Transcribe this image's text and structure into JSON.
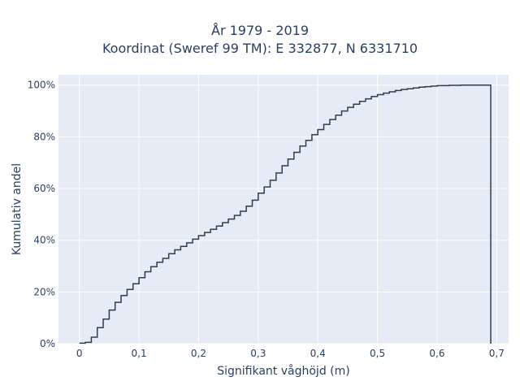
{
  "chart_data": {
    "type": "line",
    "title_lines": [
      "År 1979 - 2019",
      "Koordinat (Sweref 99 TM): E 332877, N 6331710"
    ],
    "xlabel": "Signifikant våghöjd (m)",
    "ylabel": "Kumulativ andel",
    "xlim": [
      -0.035,
      0.72
    ],
    "ylim": [
      0,
      1.04
    ],
    "x_ticks": [
      0,
      0.1,
      0.2,
      0.3,
      0.4,
      0.5,
      0.6,
      0.7
    ],
    "x_tick_labels": [
      "0",
      "0,1",
      "0,2",
      "0,3",
      "0,4",
      "0,5",
      "0,6",
      "0,7"
    ],
    "y_ticks": [
      0,
      0.2,
      0.4,
      0.6,
      0.8,
      1.0
    ],
    "y_tick_labels": [
      "0%",
      "20%",
      "40%",
      "60%",
      "80%",
      "100%"
    ],
    "grid": true,
    "line_shape": "step",
    "series": [
      {
        "name": "",
        "color": "#2f3e4e",
        "x": [
          0,
          0.01,
          0.02,
          0.03,
          0.04,
          0.05,
          0.06,
          0.07,
          0.08,
          0.09,
          0.1,
          0.11,
          0.12,
          0.13,
          0.14,
          0.15,
          0.16,
          0.17,
          0.18,
          0.19,
          0.2,
          0.21,
          0.22,
          0.23,
          0.24,
          0.25,
          0.26,
          0.27,
          0.28,
          0.29,
          0.3,
          0.31,
          0.32,
          0.33,
          0.34,
          0.35,
          0.36,
          0.37,
          0.38,
          0.39,
          0.4,
          0.41,
          0.42,
          0.43,
          0.44,
          0.45,
          0.46,
          0.47,
          0.48,
          0.49,
          0.5,
          0.51,
          0.52,
          0.53,
          0.54,
          0.55,
          0.56,
          0.57,
          0.58,
          0.59,
          0.6,
          0.62,
          0.64,
          0.66,
          0.68,
          0.69
        ],
        "y": [
          0.002,
          0.005,
          0.025,
          0.062,
          0.095,
          0.13,
          0.16,
          0.186,
          0.21,
          0.232,
          0.255,
          0.278,
          0.298,
          0.315,
          0.33,
          0.348,
          0.363,
          0.376,
          0.39,
          0.404,
          0.418,
          0.43,
          0.442,
          0.455,
          0.468,
          0.482,
          0.496,
          0.512,
          0.532,
          0.555,
          0.582,
          0.606,
          0.632,
          0.66,
          0.688,
          0.714,
          0.74,
          0.764,
          0.786,
          0.808,
          0.828,
          0.848,
          0.867,
          0.884,
          0.9,
          0.914,
          0.926,
          0.937,
          0.947,
          0.956,
          0.963,
          0.969,
          0.974,
          0.979,
          0.983,
          0.986,
          0.989,
          0.992,
          0.994,
          0.996,
          0.998,
          0.999,
          1.0,
          1.0,
          1.0,
          0.0
        ]
      }
    ]
  }
}
